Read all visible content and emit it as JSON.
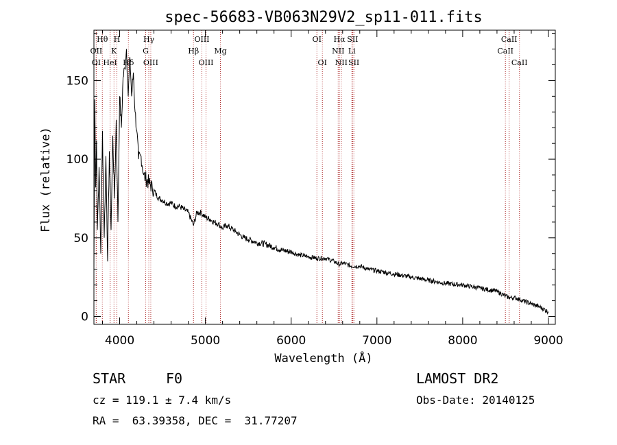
{
  "chart_data": {
    "type": "line",
    "title": "spec-56683-VB063N29V2_sp11-011.fits",
    "xlabel": "Wavelength (Å)",
    "ylabel": "Flux (relative)",
    "xlim": [
      3700,
      9080
    ],
    "ylim": [
      -5,
      182
    ],
    "xticks": [
      4000,
      5000,
      6000,
      7000,
      8000,
      9000
    ],
    "yticks": [
      0,
      50,
      100,
      150
    ],
    "grid": false,
    "series": [
      {
        "name": "spectrum",
        "x": [
          3700,
          3710,
          3720,
          3730,
          3740,
          3760,
          3780,
          3800,
          3820,
          3840,
          3860,
          3880,
          3900,
          3920,
          3940,
          3960,
          3980,
          4000,
          4020,
          4040,
          4060,
          4080,
          4100,
          4120,
          4140,
          4160,
          4180,
          4200,
          4220,
          4250,
          4280,
          4300,
          4340,
          4380,
          4420,
          4460,
          4500,
          4550,
          4600,
          4650,
          4700,
          4750,
          4800,
          4861,
          4900,
          4950,
          5000,
          5050,
          5100,
          5150,
          5200,
          5250,
          5300,
          5350,
          5400,
          5450,
          5500,
          5600,
          5700,
          5800,
          5900,
          6000,
          6100,
          6200,
          6300,
          6400,
          6500,
          6563,
          6600,
          6700,
          6800,
          6900,
          7000,
          7200,
          7400,
          7600,
          7800,
          8000,
          8200,
          8400,
          8498,
          8542,
          8600,
          8662,
          8700,
          8800,
          8900,
          9000
        ],
        "y": [
          30,
          138,
          82,
          112,
          55,
          95,
          40,
          118,
          50,
          102,
          35,
          105,
          55,
          115,
          75,
          125,
          60,
          140,
          120,
          152,
          158,
          170,
          140,
          165,
          140,
          155,
          130,
          118,
          100,
          102,
          90,
          88,
          85,
          82,
          78,
          75,
          74,
          72,
          72,
          70,
          70,
          68,
          66,
          58,
          66,
          66,
          63,
          62,
          60,
          59,
          56,
          58,
          56,
          54,
          52,
          50,
          49,
          47,
          46,
          44,
          42,
          41,
          39,
          38,
          37,
          37,
          35,
          33,
          34,
          32,
          32,
          30,
          29,
          27,
          25,
          23,
          21,
          20,
          18,
          16,
          13,
          12,
          12,
          11,
          10,
          8,
          6,
          3
        ]
      }
    ],
    "lines": [
      {
        "name": "OII",
        "wavelength": 3727,
        "row": 2
      },
      {
        "name": "Hθ",
        "wavelength": 3798,
        "row": 1
      },
      {
        "name": "OI",
        "wavelength": 3727,
        "row": 3
      },
      {
        "name": "HeI",
        "wavelength": 3889,
        "row": 3
      },
      {
        "name": "H",
        "wavelength": 3968,
        "row": 1
      },
      {
        "name": "K",
        "wavelength": 3934,
        "row": 2
      },
      {
        "name": "Hδ",
        "wavelength": 4102,
        "row": 3
      },
      {
        "name": "Hγ",
        "wavelength": 4340,
        "row": 1
      },
      {
        "name": "G",
        "wavelength": 4304,
        "row": 2
      },
      {
        "name": "OIII",
        "wavelength": 4363,
        "row": 3
      },
      {
        "name": "OIII",
        "wavelength": 4959,
        "row": 1
      },
      {
        "name": "Hβ",
        "wavelength": 4861,
        "row": 2
      },
      {
        "name": "OIII",
        "wavelength": 5007,
        "row": 3
      },
      {
        "name": "Mg",
        "wavelength": 5175,
        "row": 2
      },
      {
        "name": "OI",
        "wavelength": 6300,
        "row": 1
      },
      {
        "name": "OI",
        "wavelength": 6364,
        "row": 3
      },
      {
        "name": "Hα",
        "wavelength": 6563,
        "row": 1
      },
      {
        "name": "NII",
        "wavelength": 6548,
        "row": 2
      },
      {
        "name": "NII",
        "wavelength": 6584,
        "row": 3
      },
      {
        "name": "SII",
        "wavelength": 6717,
        "row": 1
      },
      {
        "name": "Li",
        "wavelength": 6708,
        "row": 2
      },
      {
        "name": "SII",
        "wavelength": 6731,
        "row": 3
      },
      {
        "name": "CaII",
        "wavelength": 8542,
        "row": 1
      },
      {
        "name": "CaII",
        "wavelength": 8498,
        "row": 2
      },
      {
        "name": "CaII",
        "wavelength": 8662,
        "row": 3
      }
    ]
  },
  "info": {
    "object_type": "STAR",
    "subclass": "F0",
    "survey": "LAMOST DR2",
    "velocity": "cz = 119.1 ± 7.4 km/s",
    "obs_date": "Obs-Date: 20140125",
    "coords": "RA =  63.39358, DEC =  31.77207"
  },
  "colors": {
    "line_marker": "#b03030",
    "spectrum": "#000000"
  }
}
